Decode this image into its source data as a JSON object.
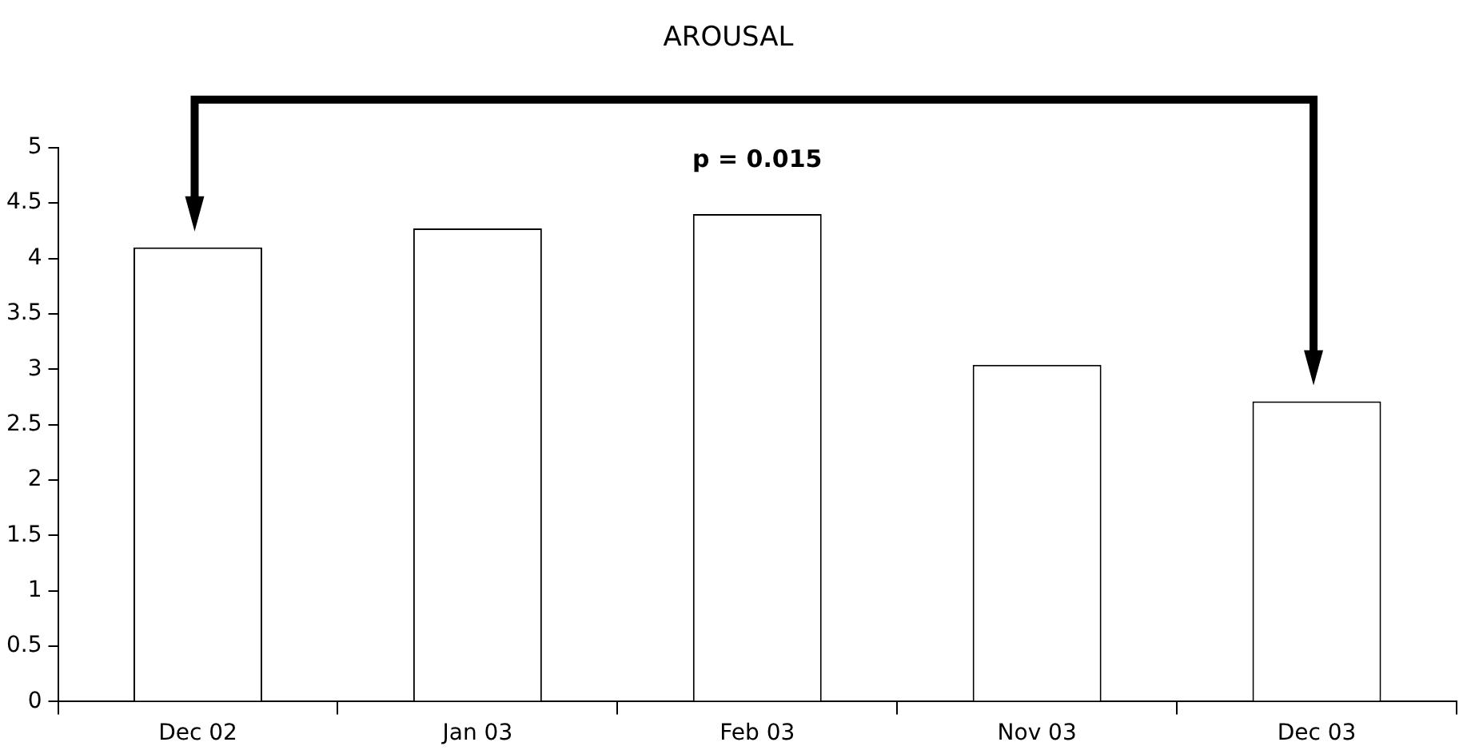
{
  "chart_data": {
    "type": "bar",
    "title": "AROUSAL",
    "categories": [
      "Dec 02",
      "Jan 03",
      "Feb 03",
      "Nov 03",
      "Dec 03"
    ],
    "values": [
      4.1,
      4.27,
      4.4,
      3.04,
      2.71
    ],
    "color": "#ffffff",
    "ylim": [
      0,
      5
    ],
    "yticks": [
      0,
      0.5,
      1,
      1.5,
      2,
      2.5,
      3,
      3.5,
      4,
      4.5,
      5
    ],
    "grid": false,
    "legend": false,
    "annotations": [
      "p = 0.015"
    ]
  }
}
